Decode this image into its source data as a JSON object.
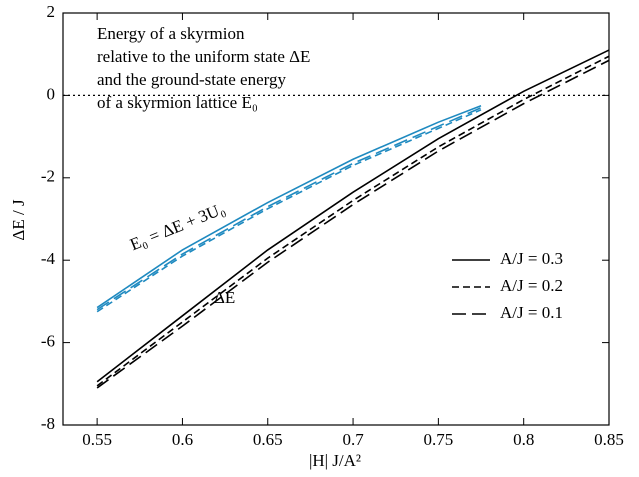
{
  "chart_data": {
    "type": "line",
    "annotations": [
      "Energy of a skyrmion",
      "relative to the uniform state ΔE",
      "and the ground-state energy",
      "of a skyrmion lattice E₀"
    ],
    "curve_labels": [
      "E₀ = ΔE + 3U₀",
      "ΔE"
    ],
    "xlabel": "|H| J/A²",
    "ylabel": "ΔE / J",
    "xlim": [
      0.53,
      0.85
    ],
    "ylim": [
      -8,
      2
    ],
    "xticks": [
      0.55,
      0.6,
      0.65,
      0.7,
      0.75,
      0.8,
      0.85
    ],
    "yticks": [
      -8,
      -6,
      -4,
      -2,
      0,
      2
    ],
    "hline": 0,
    "series": [
      {
        "name": "A/J = 0.3",
        "color": "#000000",
        "dash": "solid",
        "x": [
          0.55,
          0.6,
          0.65,
          0.7,
          0.75,
          0.8,
          0.85
        ],
        "values": [
          -6.95,
          -5.35,
          -3.75,
          -2.35,
          -1.05,
          0.1,
          1.1
        ]
      },
      {
        "name": "A/J = 0.2",
        "color": "#000000",
        "dash": "short",
        "x": [
          0.55,
          0.6,
          0.65,
          0.7,
          0.75,
          0.8,
          0.85
        ],
        "values": [
          -7.05,
          -5.5,
          -3.95,
          -2.55,
          -1.25,
          -0.1,
          0.95
        ]
      },
      {
        "name": "A/J = 0.1",
        "color": "#000000",
        "dash": "long",
        "x": [
          0.55,
          0.6,
          0.65,
          0.7,
          0.75,
          0.8,
          0.85
        ],
        "values": [
          -7.1,
          -5.6,
          -4.05,
          -2.65,
          -1.35,
          -0.2,
          0.85
        ]
      },
      {
        "color": "#1f8ac0",
        "dash": "solid",
        "x": [
          0.55,
          0.6,
          0.65,
          0.7,
          0.75,
          0.775
        ],
        "values": [
          -5.15,
          -3.75,
          -2.6,
          -1.55,
          -0.65,
          -0.25
        ]
      },
      {
        "color": "#1f8ac0",
        "dash": "short",
        "x": [
          0.55,
          0.6,
          0.65,
          0.7,
          0.75,
          0.775
        ],
        "values": [
          -5.25,
          -3.9,
          -2.75,
          -1.7,
          -0.8,
          -0.35
        ]
      },
      {
        "color": "#1f8ac0",
        "dash": "long",
        "x": [
          0.55,
          0.6,
          0.65,
          0.7,
          0.75,
          0.775
        ],
        "values": [
          -5.2,
          -3.85,
          -2.7,
          -1.65,
          -0.75,
          -0.3
        ]
      }
    ]
  }
}
